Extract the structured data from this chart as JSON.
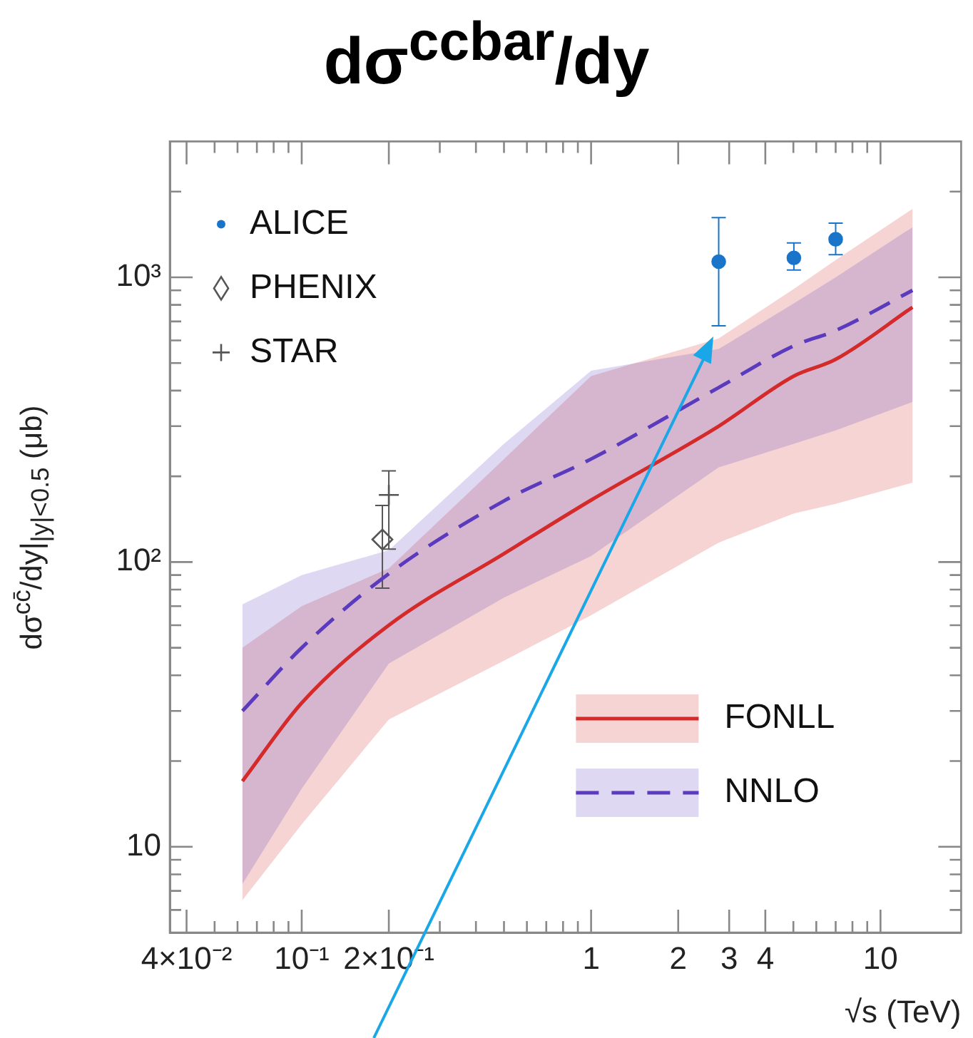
{
  "chart_data": {
    "type": "line",
    "title": "dσ$^{ccbar}$/dy",
    "xlabel": "√s (TeV)",
    "ylabel": "dσ$^{cc̄}$/dy|$_{|y|<0.5}$ (μb)",
    "log": "xy",
    "xlim": [
      0.035,
      19
    ],
    "ylim": [
      5,
      3000
    ],
    "xticks": [
      {
        "value": 0.04,
        "label": "4×10⁻²"
      },
      {
        "value": 0.05,
        "label": null
      },
      {
        "value": 0.06,
        "label": null
      },
      {
        "value": 0.07,
        "label": null
      },
      {
        "value": 0.08,
        "label": null
      },
      {
        "value": 0.09,
        "label": null
      },
      {
        "value": 0.1,
        "label": "10⁻¹"
      },
      {
        "value": 0.2,
        "label": "2×10⁻¹"
      },
      {
        "value": 0.3,
        "label": null
      },
      {
        "value": 0.4,
        "label": null
      },
      {
        "value": 0.5,
        "label": null
      },
      {
        "value": 0.6,
        "label": null
      },
      {
        "value": 0.7,
        "label": null
      },
      {
        "value": 0.8,
        "label": null
      },
      {
        "value": 0.9,
        "label": null
      },
      1,
      2,
      3,
      4,
      {
        "value": 5,
        "label": null
      },
      {
        "value": 6,
        "label": null
      },
      {
        "value": 7,
        "label": null
      },
      {
        "value": 8,
        "label": null
      },
      {
        "value": 9,
        "label": null
      },
      10
    ],
    "yticks": [
      {
        "value": 6,
        "label": null
      },
      {
        "value": 7,
        "label": null
      },
      {
        "value": 8,
        "label": null
      },
      {
        "value": 9,
        "label": null
      },
      10,
      {
        "value": 20,
        "label": null
      },
      {
        "value": 30,
        "label": null
      },
      {
        "value": 40,
        "label": null
      },
      {
        "value": 50,
        "label": null
      },
      {
        "value": 60,
        "label": null
      },
      {
        "value": 70,
        "label": null
      },
      {
        "value": 80,
        "label": null
      },
      {
        "value": 90,
        "label": null
      },
      {
        "value": 100,
        "label": "10²"
      },
      {
        "value": 200,
        "label": null
      },
      {
        "value": 300,
        "label": null
      },
      {
        "value": 400,
        "label": null
      },
      {
        "value": 500,
        "label": null
      },
      {
        "value": 600,
        "label": null
      },
      {
        "value": 700,
        "label": null
      },
      {
        "value": 800,
        "label": null
      },
      {
        "value": 900,
        "label": null
      },
      {
        "value": 1000,
        "label": "10³"
      },
      {
        "value": 2000,
        "label": null
      }
    ],
    "legend": "top left",
    "series": [
      {
        "name": "ALICE",
        "type": "scatter",
        "marker": "circle",
        "color": "#1a74c9",
        "x": [
          2.76,
          5.02,
          7
        ],
        "values": [
          1135,
          1170,
          1360
        ],
        "errors": [
          [
            676,
            1620
          ],
          [
            1060,
            1320
          ],
          [
            1200,
            1550
          ]
        ]
      },
      {
        "name": "PHENIX",
        "type": "scatter",
        "marker": "diamond",
        "color": "#555555",
        "x": [
          0.19
        ],
        "values": [
          120
        ],
        "errors": [
          [
            81,
            158
          ]
        ]
      },
      {
        "name": "STAR",
        "type": "scatter",
        "marker": "cross",
        "color": "#555555",
        "x": [
          0.2
        ],
        "values": [
          172
        ],
        "errors": [
          [
            111,
            209
          ]
        ]
      },
      {
        "name": "FONLL",
        "line_style": "solid",
        "color": "#d42a2a",
        "x": [
          0.0624,
          0.1,
          0.2,
          0.5,
          1,
          2.76,
          5.02,
          7,
          12.9
        ],
        "values": [
          17,
          32,
          60,
          107,
          165,
          300,
          450,
          515,
          785
        ],
        "lower": [
          6.5,
          12,
          28,
          45,
          65,
          117,
          148,
          160,
          190
        ],
        "upper": [
          50,
          70,
          95,
          230,
          450,
          610,
          910,
          1150,
          1740
        ]
      },
      {
        "name": "NNLO",
        "line_style": "dashed",
        "color": "#5a3bbd",
        "x": [
          0.0624,
          0.1,
          0.2,
          0.5,
          1,
          2.76,
          5.02,
          7,
          12.9
        ],
        "values": [
          30,
          50,
          91,
          164,
          230,
          410,
          575,
          650,
          900
        ],
        "lower": [
          7.4,
          16,
          44,
          75,
          105,
          215,
          260,
          290,
          365
        ],
        "upper": [
          71,
          90,
          110,
          260,
          470,
          560,
          810,
          1000,
          1500
        ]
      }
    ]
  }
}
